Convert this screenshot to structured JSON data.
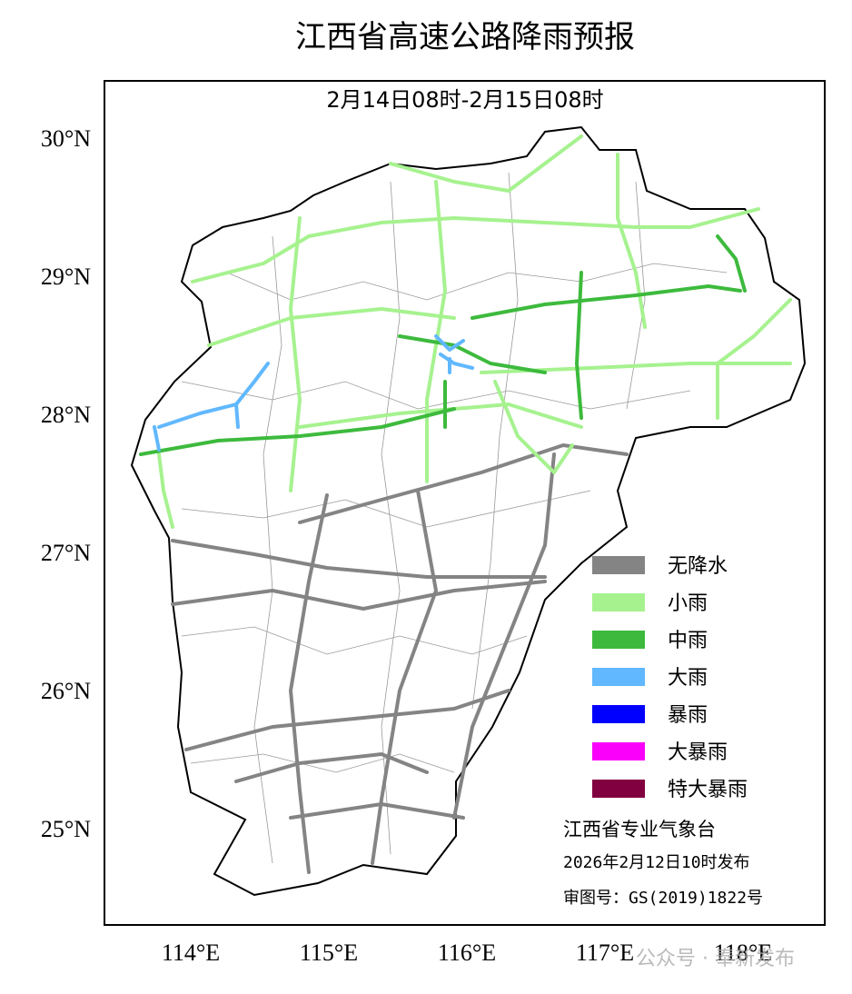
{
  "title": "江西省高速公路降雨预报",
  "subtitle": "2月14日08时-2月15日08时",
  "lat_labels": [
    "30°N",
    "29°N",
    "28°N",
    "27°N",
    "26°N",
    "25°N"
  ],
  "lon_labels": [
    "114°E",
    "115°E",
    "116°E",
    "117°E",
    "118°E"
  ],
  "legend": [
    {
      "label": "无降水",
      "color": "#848484"
    },
    {
      "label": "小雨",
      "color": "#a6f28f"
    },
    {
      "label": "中雨",
      "color": "#3dba3d"
    },
    {
      "label": "大雨",
      "color": "#61b8ff"
    },
    {
      "label": "暴雨",
      "color": "#0000fe"
    },
    {
      "label": "大暴雨",
      "color": "#fa00fa"
    },
    {
      "label": "特大暴雨",
      "color": "#810040"
    }
  ],
  "footer": [
    "江西省专业气象台",
    "2026年2月12日10时发布",
    "审图号：GS(2019)1822号"
  ],
  "watermark": "公众号 · 奉新发布"
}
